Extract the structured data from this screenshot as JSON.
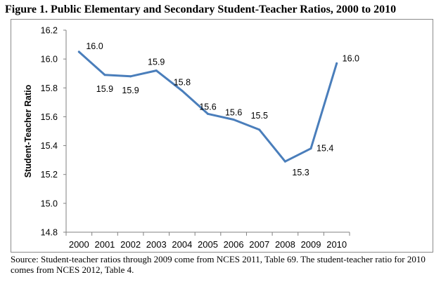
{
  "figure": {
    "title": "Figure 1. Public Elementary and Secondary Student-Teacher Ratios, 2000 to 2010"
  },
  "source_note": "Source: Student-teacher ratios through 2009 come from NCES 2011, Table 69. The student-teacher ratio for 2010 comes from NCES 2012, Table 4.",
  "chart_data": {
    "type": "line",
    "title": "Figure 1. Public Elementary and Secondary Student-Teacher Ratios, 2000 to 2010",
    "xlabel": "",
    "ylabel": "Student-Teacher Ratio",
    "x": [
      "2000",
      "2001",
      "2002",
      "2003",
      "2004",
      "2005",
      "2006",
      "2007",
      "2008",
      "2009",
      "2010"
    ],
    "values": [
      16.05,
      15.89,
      15.88,
      15.92,
      15.78,
      15.62,
      15.58,
      15.51,
      15.29,
      15.38,
      15.97
    ],
    "data_labels": [
      "16.0",
      "15.9",
      "15.9",
      "15.9",
      "15.8",
      "15.6",
      "15.6",
      "15.5",
      "15.3",
      "15.4",
      "16.0"
    ],
    "ylim": [
      14.8,
      16.2
    ],
    "yticks": [
      14.8,
      15.0,
      15.2,
      15.4,
      15.6,
      15.8,
      16.0,
      16.2
    ],
    "ytick_labels": [
      "14.8",
      "15.0",
      "15.2",
      "15.4",
      "15.6",
      "15.8",
      "16.0",
      "16.2"
    ],
    "grid": false,
    "legend": "none",
    "line_color": "#4a7ebb"
  }
}
